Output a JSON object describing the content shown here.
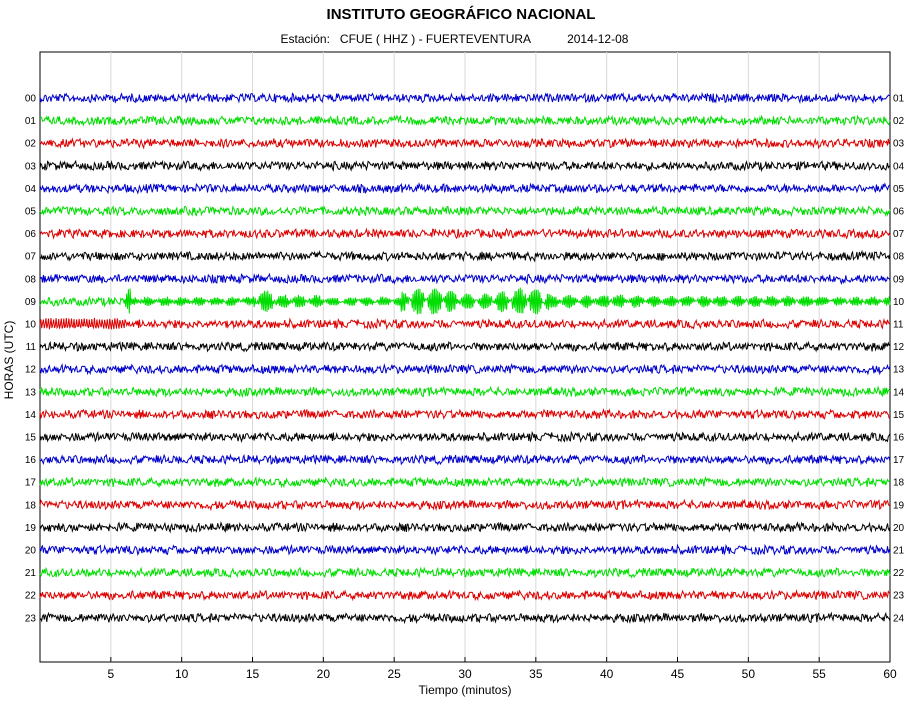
{
  "header": {
    "title": "INSTITUTO GEOGRÁFICO NACIONAL",
    "station_label": "Estación:",
    "station": "CFUE ( HHZ ) - FUERTEVENTURA",
    "date": "2014-12-08"
  },
  "chart_data": {
    "type": "line",
    "title": "INSTITUTO GEOGRÁFICO NACIONAL",
    "subtitle": "Estación:  CFUE ( HHZ ) - FUERTEVENTURA    2014-12-08",
    "xlabel": "Tiempo (minutos)",
    "ylabel": "HORAS (UTC)",
    "xlim": [
      0,
      60
    ],
    "x_ticks": [
      5,
      10,
      15,
      20,
      25,
      30,
      35,
      40,
      45,
      50,
      55,
      60
    ],
    "grid": "vertical",
    "left_hour_labels": [
      "00",
      "01",
      "02",
      "03",
      "04",
      "05",
      "06",
      "07",
      "08",
      "09",
      "10",
      "11",
      "12",
      "13",
      "14",
      "15",
      "16",
      "17",
      "18",
      "19",
      "20",
      "21",
      "22",
      "23"
    ],
    "right_hour_labels": [
      "01",
      "02",
      "03",
      "04",
      "05",
      "06",
      "07",
      "08",
      "09",
      "10",
      "11",
      "12",
      "13",
      "14",
      "15",
      "16",
      "17",
      "18",
      "19",
      "20",
      "21",
      "22",
      "23",
      "24"
    ],
    "trace_colors": [
      "#0000cc",
      "#00dd00",
      "#dd0000",
      "#000000"
    ],
    "events": [
      {
        "hour": "09",
        "start_min": 6,
        "end_min": 60,
        "description_label": ""
      },
      {
        "hour": "10",
        "start_min": 0,
        "end_min": 6,
        "description_label": ""
      }
    ]
  }
}
